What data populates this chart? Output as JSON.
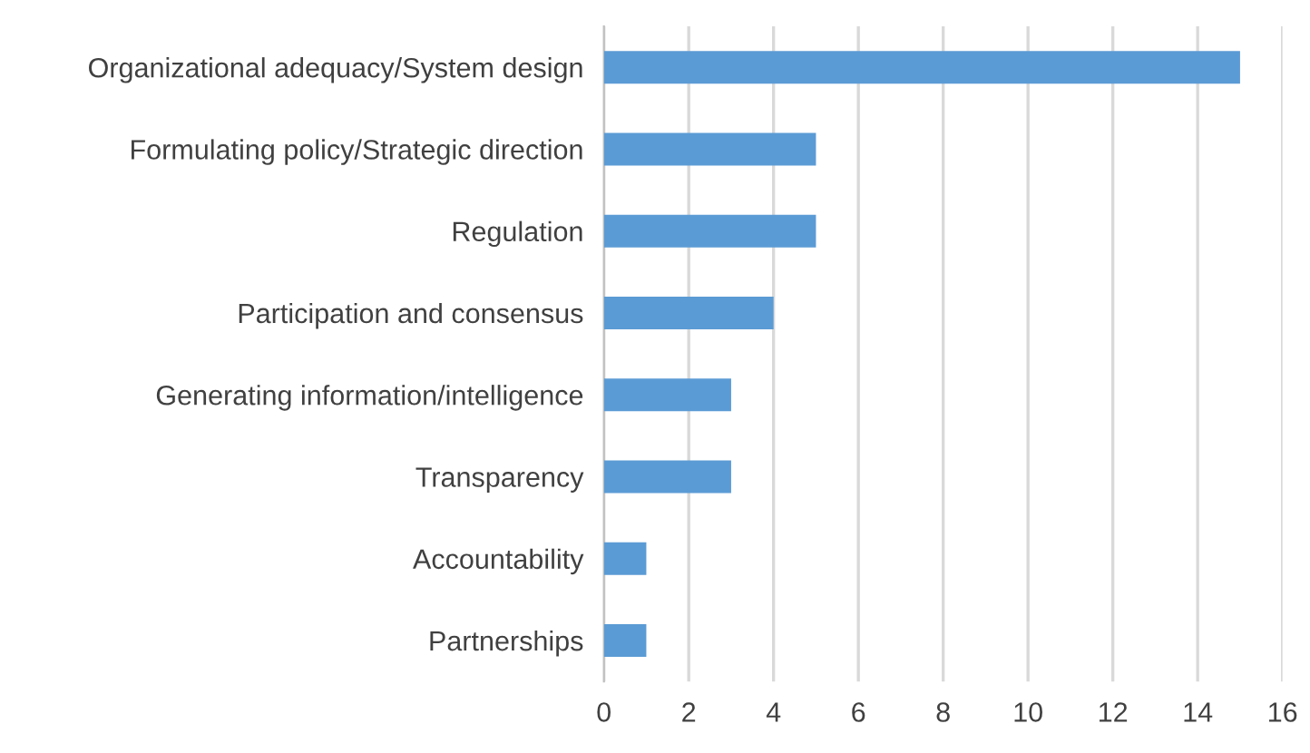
{
  "chart_data": {
    "type": "bar",
    "orientation": "horizontal",
    "categories": [
      "Organizational adequacy/System design",
      "Formulating policy/Strategic direction",
      "Regulation",
      "Participation and consensus",
      "Generating information/intelligence",
      "Transparency",
      "Accountability",
      "Partnerships"
    ],
    "values": [
      15,
      5,
      5,
      4,
      3,
      3,
      1,
      1
    ],
    "color": "#5b9bd5",
    "xlim": [
      0,
      16
    ],
    "xticks": [
      0,
      2,
      4,
      6,
      8,
      10,
      12,
      14,
      16
    ],
    "grid": "x",
    "legend": false
  }
}
